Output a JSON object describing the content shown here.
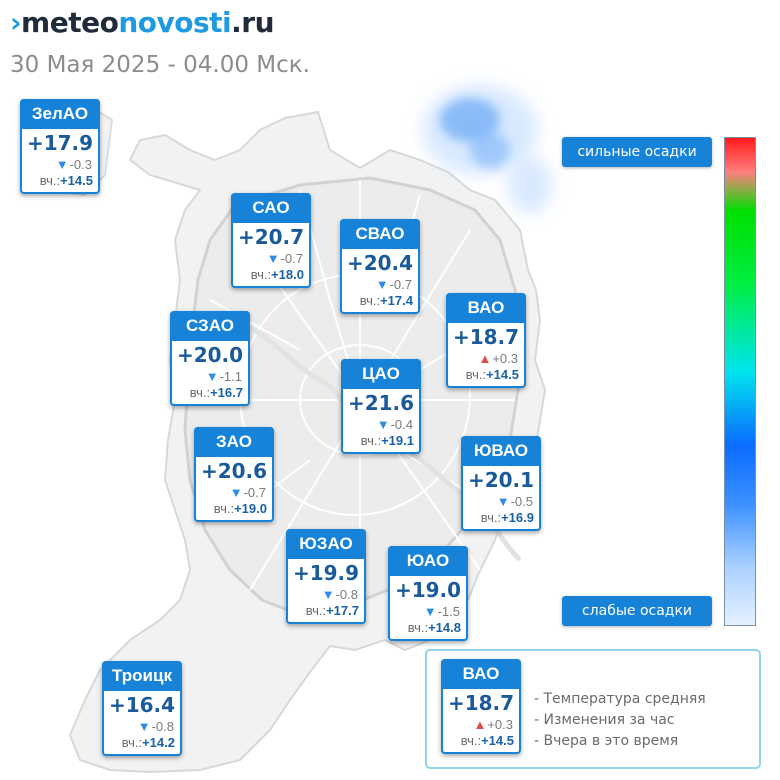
{
  "header": {
    "logo_prefix": "meteo",
    "logo_novosti": "novosti",
    "logo_suffix": ".ru",
    "date": "30 Мая 2025 - 04.00 Мск."
  },
  "colors": {
    "card_header": "#1683d8",
    "temperature_text": "#1a5a9a",
    "arrow_down": "#2e8de0",
    "arrow_up": "#e04a4a",
    "precip_light": "#2a7bd8"
  },
  "districts": [
    {
      "name": "ЗелАО",
      "temp": "+17.9",
      "trend": "down",
      "change": "-0.3",
      "yesterday_label": "вч.:",
      "yesterday": "+14.5"
    },
    {
      "name": "САО",
      "temp": "+20.7",
      "trend": "down",
      "change": "-0.7",
      "yesterday_label": "вч.:",
      "yesterday": "+18.0"
    },
    {
      "name": "СВАО",
      "temp": "+20.4",
      "trend": "down",
      "change": "-0.7",
      "yesterday_label": "вч.:",
      "yesterday": "+17.4"
    },
    {
      "name": "ВАО",
      "temp": "+18.7",
      "trend": "up",
      "change": "+0.3",
      "yesterday_label": "вч.:",
      "yesterday": "+14.5"
    },
    {
      "name": "СЗАО",
      "temp": "+20.0",
      "trend": "down",
      "change": "-1.1",
      "yesterday_label": "вч.:",
      "yesterday": "+16.7"
    },
    {
      "name": "ЦАО",
      "temp": "+21.6",
      "trend": "down",
      "change": "-0.4",
      "yesterday_label": "вч.:",
      "yesterday": "+19.1"
    },
    {
      "name": "ЗАО",
      "temp": "+20.6",
      "trend": "down",
      "change": "-0.7",
      "yesterday_label": "вч.:",
      "yesterday": "+19.0"
    },
    {
      "name": "ЮВАО",
      "temp": "+20.1",
      "trend": "down",
      "change": "-0.5",
      "yesterday_label": "вч.:",
      "yesterday": "+16.9"
    },
    {
      "name": "ЮЗАО",
      "temp": "+19.9",
      "trend": "down",
      "change": "-0.8",
      "yesterday_label": "вч.:",
      "yesterday": "+17.7"
    },
    {
      "name": "ЮАО",
      "temp": "+19.0",
      "trend": "down",
      "change": "-1.5",
      "yesterday_label": "вч.:",
      "yesterday": "+14.8"
    },
    {
      "name": "Троицк",
      "temp": "+16.4",
      "trend": "down",
      "change": "-0.8",
      "yesterday_label": "вч.:",
      "yesterday": "+14.2"
    }
  ],
  "precip_scale": {
    "strong_label": "сильные осадки",
    "weak_label": "слабые осадки"
  },
  "legend": {
    "sample": {
      "name": "ВАО",
      "temp": "+18.7",
      "trend": "up",
      "change": "+0.3",
      "yesterday_label": "вч.:",
      "yesterday": "+14.5"
    },
    "lines": [
      "- Температура средняя",
      "- Изменения за час",
      "- Вчера в это время"
    ]
  }
}
